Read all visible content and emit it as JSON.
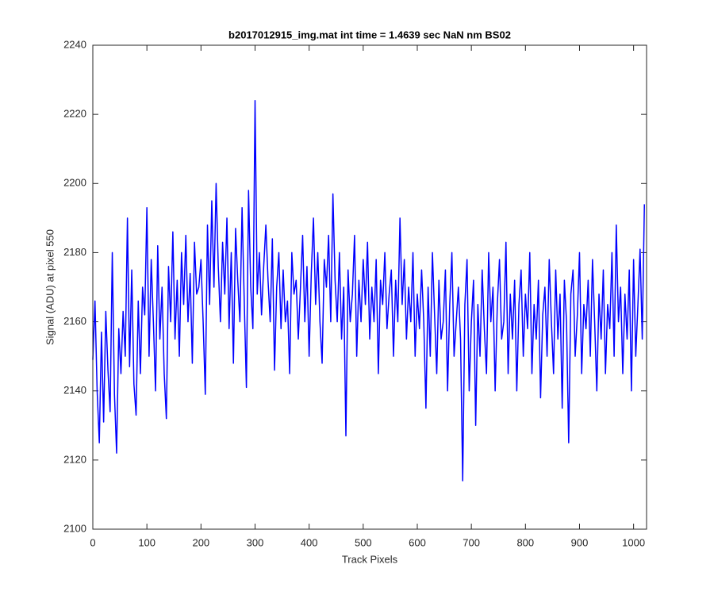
{
  "chart_data": {
    "type": "line",
    "title": "b2017012915_img.mat int time = 1.4639 sec  NaN nm BS02",
    "xlabel": "Track Pixels",
    "ylabel": "Signal (ADU) at pixel 550",
    "xlim": [
      0,
      1024
    ],
    "ylim": [
      2100,
      2240
    ],
    "xticks": [
      0,
      100,
      200,
      300,
      400,
      500,
      600,
      700,
      800,
      900,
      1000
    ],
    "yticks": [
      2100,
      2120,
      2140,
      2160,
      2180,
      2200,
      2220,
      2240
    ],
    "grid": false,
    "x": [
      0,
      4,
      8,
      12,
      16,
      20,
      24,
      28,
      32,
      36,
      40,
      44,
      48,
      52,
      56,
      60,
      64,
      68,
      72,
      76,
      80,
      84,
      88,
      92,
      96,
      100,
      104,
      108,
      112,
      116,
      120,
      124,
      128,
      132,
      136,
      140,
      144,
      148,
      152,
      156,
      160,
      164,
      168,
      172,
      176,
      180,
      184,
      188,
      192,
      196,
      200,
      204,
      208,
      212,
      216,
      220,
      224,
      228,
      232,
      236,
      240,
      244,
      248,
      252,
      256,
      260,
      264,
      268,
      272,
      276,
      280,
      284,
      288,
      292,
      296,
      300,
      304,
      308,
      312,
      316,
      320,
      324,
      328,
      332,
      336,
      340,
      344,
      348,
      352,
      356,
      360,
      364,
      368,
      372,
      376,
      380,
      384,
      388,
      392,
      396,
      400,
      404,
      408,
      412,
      416,
      420,
      424,
      428,
      432,
      436,
      440,
      444,
      448,
      452,
      456,
      460,
      464,
      468,
      472,
      476,
      480,
      484,
      488,
      492,
      496,
      500,
      504,
      508,
      512,
      516,
      520,
      524,
      528,
      532,
      536,
      540,
      544,
      548,
      552,
      556,
      560,
      564,
      568,
      572,
      576,
      580,
      584,
      588,
      592,
      596,
      600,
      604,
      608,
      612,
      616,
      620,
      624,
      628,
      632,
      636,
      640,
      644,
      648,
      652,
      656,
      660,
      664,
      668,
      672,
      676,
      680,
      684,
      688,
      692,
      696,
      700,
      704,
      708,
      712,
      716,
      720,
      724,
      728,
      732,
      736,
      740,
      744,
      748,
      752,
      756,
      760,
      764,
      768,
      772,
      776,
      780,
      784,
      788,
      792,
      796,
      800,
      804,
      808,
      812,
      816,
      820,
      824,
      828,
      832,
      836,
      840,
      844,
      848,
      852,
      856,
      860,
      864,
      868,
      872,
      876,
      880,
      884,
      888,
      892,
      896,
      900,
      904,
      908,
      912,
      916,
      920,
      924,
      928,
      932,
      936,
      940,
      944,
      948,
      952,
      956,
      960,
      964,
      968,
      972,
      976,
      980,
      984,
      988,
      992,
      996,
      1000,
      1004,
      1008,
      1012,
      1016,
      1020
    ],
    "series": [
      {
        "color": "#0000ff",
        "values": [
          2149,
          2166,
          2140,
          2125,
          2157,
          2131,
          2163,
          2146,
          2134,
          2180,
          2139,
          2122,
          2158,
          2145,
          2163,
          2150,
          2190,
          2147,
          2175,
          2142,
          2133,
          2166,
          2145,
          2170,
          2162,
          2193,
          2150,
          2178,
          2160,
          2140,
          2182,
          2155,
          2170,
          2145,
          2132,
          2176,
          2160,
          2186,
          2155,
          2172,
          2150,
          2180,
          2165,
          2185,
          2160,
          2174,
          2148,
          2183,
          2168,
          2170,
          2178,
          2160,
          2139,
          2188,
          2165,
          2195,
          2170,
          2200,
          2176,
          2160,
          2183,
          2168,
          2190,
          2158,
          2180,
          2148,
          2187,
          2172,
          2160,
          2193,
          2166,
          2141,
          2198,
          2170,
          2158,
          2224,
          2168,
          2180,
          2162,
          2176,
          2188,
          2172,
          2160,
          2184,
          2146,
          2170,
          2180,
          2158,
          2175,
          2160,
          2166,
          2145,
          2180,
          2168,
          2172,
          2155,
          2170,
          2185,
          2160,
          2176,
          2150,
          2174,
          2190,
          2165,
          2180,
          2160,
          2148,
          2178,
          2170,
          2185,
          2160,
          2197,
          2172,
          2160,
          2180,
          2155,
          2170,
          2127,
          2175,
          2160,
          2168,
          2185,
          2150,
          2172,
          2160,
          2178,
          2165,
          2183,
          2155,
          2170,
          2160,
          2178,
          2145,
          2172,
          2165,
          2180,
          2158,
          2168,
          2175,
          2150,
          2172,
          2160,
          2190,
          2165,
          2178,
          2155,
          2170,
          2160,
          2180,
          2150,
          2168,
          2158,
          2175,
          2160,
          2135,
          2170,
          2150,
          2180,
          2162,
          2145,
          2172,
          2155,
          2160,
          2175,
          2140,
          2165,
          2180,
          2150,
          2160,
          2170,
          2155,
          2114,
          2165,
          2178,
          2140,
          2160,
          2172,
          2130,
          2165,
          2150,
          2175,
          2158,
          2145,
          2180,
          2160,
          2170,
          2140,
          2165,
          2178,
          2155,
          2160,
          2183,
          2145,
          2168,
          2155,
          2172,
          2140,
          2165,
          2175,
          2150,
          2168,
          2158,
          2180,
          2145,
          2165,
          2155,
          2172,
          2138,
          2162,
          2170,
          2150,
          2178,
          2160,
          2145,
          2175,
          2155,
          2168,
          2135,
          2172,
          2160,
          2125,
          2168,
          2175,
          2150,
          2162,
          2180,
          2145,
          2165,
          2158,
          2172,
          2150,
          2178,
          2160,
          2140,
          2168,
          2155,
          2175,
          2145,
          2165,
          2158,
          2180,
          2150,
          2188,
          2160,
          2170,
          2145,
          2168,
          2155,
          2175,
          2140,
          2178,
          2150,
          2165,
          2181,
          2155,
          2194
        ]
      }
    ]
  }
}
